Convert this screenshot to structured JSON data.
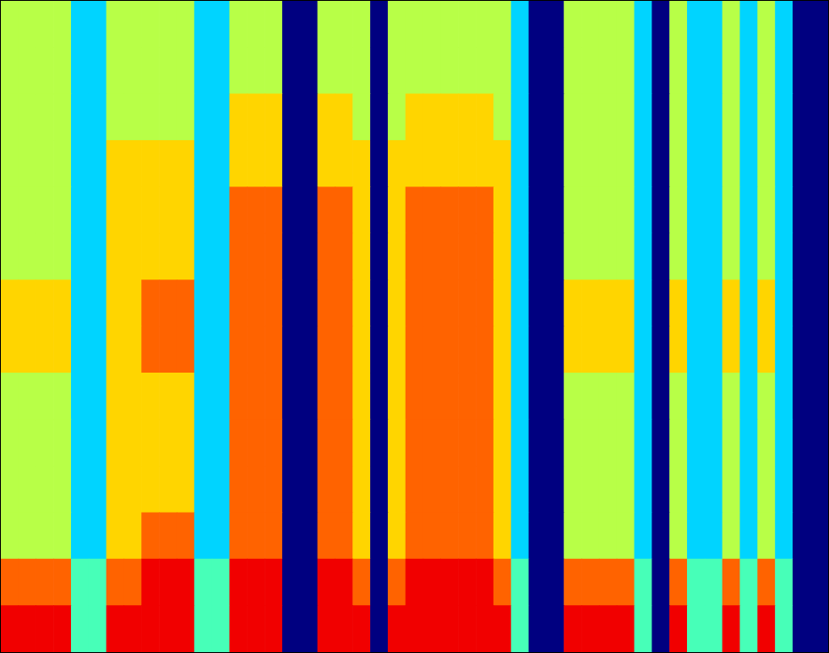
{
  "chart_data": {
    "type": "heatmap",
    "tick_labels": false,
    "clim": [
      0,
      9
    ],
    "cells": [
      [
        5,
        5,
        5,
        5,
        3,
        3,
        5,
        5,
        5,
        5,
        5,
        3,
        3,
        5,
        5,
        5,
        0,
        0,
        5,
        5,
        5,
        0,
        5,
        5,
        5,
        5,
        5,
        5,
        5,
        3,
        0,
        0,
        5,
        5,
        5,
        5,
        3,
        0,
        5,
        3,
        3,
        5,
        3,
        5,
        3,
        0,
        0
      ],
      [
        5,
        5,
        5,
        5,
        3,
        3,
        5,
        5,
        5,
        5,
        5,
        3,
        3,
        5,
        5,
        5,
        0,
        0,
        5,
        5,
        5,
        0,
        5,
        5,
        5,
        5,
        5,
        5,
        5,
        3,
        0,
        0,
        5,
        5,
        5,
        5,
        3,
        0,
        5,
        3,
        3,
        5,
        3,
        5,
        3,
        0,
        0
      ],
      [
        5,
        5,
        5,
        5,
        3,
        3,
        5,
        5,
        5,
        5,
        5,
        3,
        3,
        6,
        6,
        6,
        0,
        0,
        6,
        6,
        5,
        0,
        5,
        6,
        6,
        6,
        6,
        6,
        5,
        3,
        0,
        0,
        5,
        5,
        5,
        5,
        3,
        0,
        5,
        3,
        3,
        5,
        3,
        5,
        3,
        0,
        0
      ],
      [
        5,
        5,
        5,
        5,
        3,
        3,
        6,
        6,
        6,
        6,
        6,
        3,
        3,
        6,
        6,
        6,
        0,
        0,
        6,
        6,
        6,
        0,
        6,
        6,
        6,
        6,
        6,
        6,
        6,
        3,
        0,
        0,
        5,
        5,
        5,
        5,
        3,
        0,
        5,
        3,
        3,
        5,
        3,
        5,
        3,
        0,
        0
      ],
      [
        5,
        5,
        5,
        5,
        3,
        3,
        6,
        6,
        6,
        6,
        6,
        3,
        3,
        7,
        7,
        7,
        0,
        0,
        7,
        7,
        6,
        0,
        6,
        7,
        7,
        7,
        7,
        7,
        6,
        3,
        0,
        0,
        5,
        5,
        5,
        5,
        3,
        0,
        5,
        3,
        3,
        5,
        3,
        5,
        3,
        0,
        0
      ],
      [
        5,
        5,
        5,
        5,
        3,
        3,
        6,
        6,
        6,
        6,
        6,
        3,
        3,
        7,
        7,
        7,
        0,
        0,
        7,
        7,
        6,
        0,
        6,
        7,
        7,
        7,
        7,
        7,
        6,
        3,
        0,
        0,
        5,
        5,
        5,
        5,
        3,
        0,
        5,
        3,
        3,
        5,
        3,
        5,
        3,
        0,
        0
      ],
      [
        6,
        6,
        6,
        6,
        3,
        3,
        6,
        6,
        7,
        7,
        7,
        3,
        3,
        7,
        7,
        7,
        0,
        0,
        7,
        7,
        6,
        0,
        6,
        7,
        7,
        7,
        7,
        7,
        6,
        3,
        0,
        0,
        6,
        6,
        6,
        6,
        3,
        0,
        6,
        3,
        3,
        6,
        3,
        6,
        3,
        0,
        0
      ],
      [
        6,
        6,
        6,
        6,
        3,
        3,
        6,
        6,
        7,
        7,
        7,
        3,
        3,
        7,
        7,
        7,
        0,
        0,
        7,
        7,
        6,
        0,
        6,
        7,
        7,
        7,
        7,
        7,
        6,
        3,
        0,
        0,
        6,
        6,
        6,
        6,
        3,
        0,
        6,
        3,
        3,
        6,
        3,
        6,
        3,
        0,
        0
      ],
      [
        5,
        5,
        5,
        5,
        3,
        3,
        6,
        6,
        6,
        6,
        6,
        3,
        3,
        7,
        7,
        7,
        0,
        0,
        7,
        7,
        6,
        0,
        6,
        7,
        7,
        7,
        7,
        7,
        6,
        3,
        0,
        0,
        5,
        5,
        5,
        5,
        3,
        0,
        5,
        3,
        3,
        5,
        3,
        5,
        3,
        0,
        0
      ],
      [
        5,
        5,
        5,
        5,
        3,
        3,
        6,
        6,
        6,
        6,
        6,
        3,
        3,
        7,
        7,
        7,
        0,
        0,
        7,
        7,
        6,
        0,
        6,
        7,
        7,
        7,
        7,
        7,
        6,
        3,
        0,
        0,
        5,
        5,
        5,
        5,
        3,
        0,
        5,
        3,
        3,
        5,
        3,
        5,
        3,
        0,
        0
      ],
      [
        5,
        5,
        5,
        5,
        3,
        3,
        6,
        6,
        6,
        6,
        6,
        3,
        3,
        7,
        7,
        7,
        0,
        0,
        7,
        7,
        6,
        0,
        6,
        7,
        7,
        7,
        7,
        7,
        6,
        3,
        0,
        0,
        5,
        5,
        5,
        5,
        3,
        0,
        5,
        3,
        3,
        5,
        3,
        5,
        3,
        0,
        0
      ],
      [
        5,
        5,
        5,
        5,
        3,
        3,
        6,
        6,
        7,
        7,
        7,
        3,
        3,
        7,
        7,
        7,
        0,
        0,
        7,
        7,
        6,
        0,
        6,
        7,
        7,
        7,
        7,
        7,
        6,
        3,
        0,
        0,
        5,
        5,
        5,
        5,
        3,
        0,
        5,
        3,
        3,
        5,
        3,
        5,
        3,
        0,
        0
      ],
      [
        7,
        7,
        7,
        7,
        4,
        4,
        7,
        7,
        8,
        8,
        8,
        4,
        4,
        8,
        8,
        8,
        0,
        0,
        8,
        8,
        7,
        0,
        7,
        8,
        8,
        8,
        8,
        8,
        7,
        4,
        0,
        0,
        7,
        7,
        7,
        7,
        4,
        0,
        7,
        4,
        4,
        7,
        4,
        7,
        4,
        0,
        0
      ],
      [
        8,
        8,
        8,
        8,
        4,
        4,
        8,
        8,
        8,
        8,
        8,
        4,
        4,
        8,
        8,
        8,
        0,
        0,
        8,
        8,
        8,
        0,
        8,
        8,
        8,
        8,
        8,
        8,
        8,
        4,
        0,
        0,
        8,
        8,
        8,
        8,
        4,
        0,
        8,
        4,
        4,
        8,
        4,
        8,
        4,
        0,
        0
      ]
    ]
  }
}
